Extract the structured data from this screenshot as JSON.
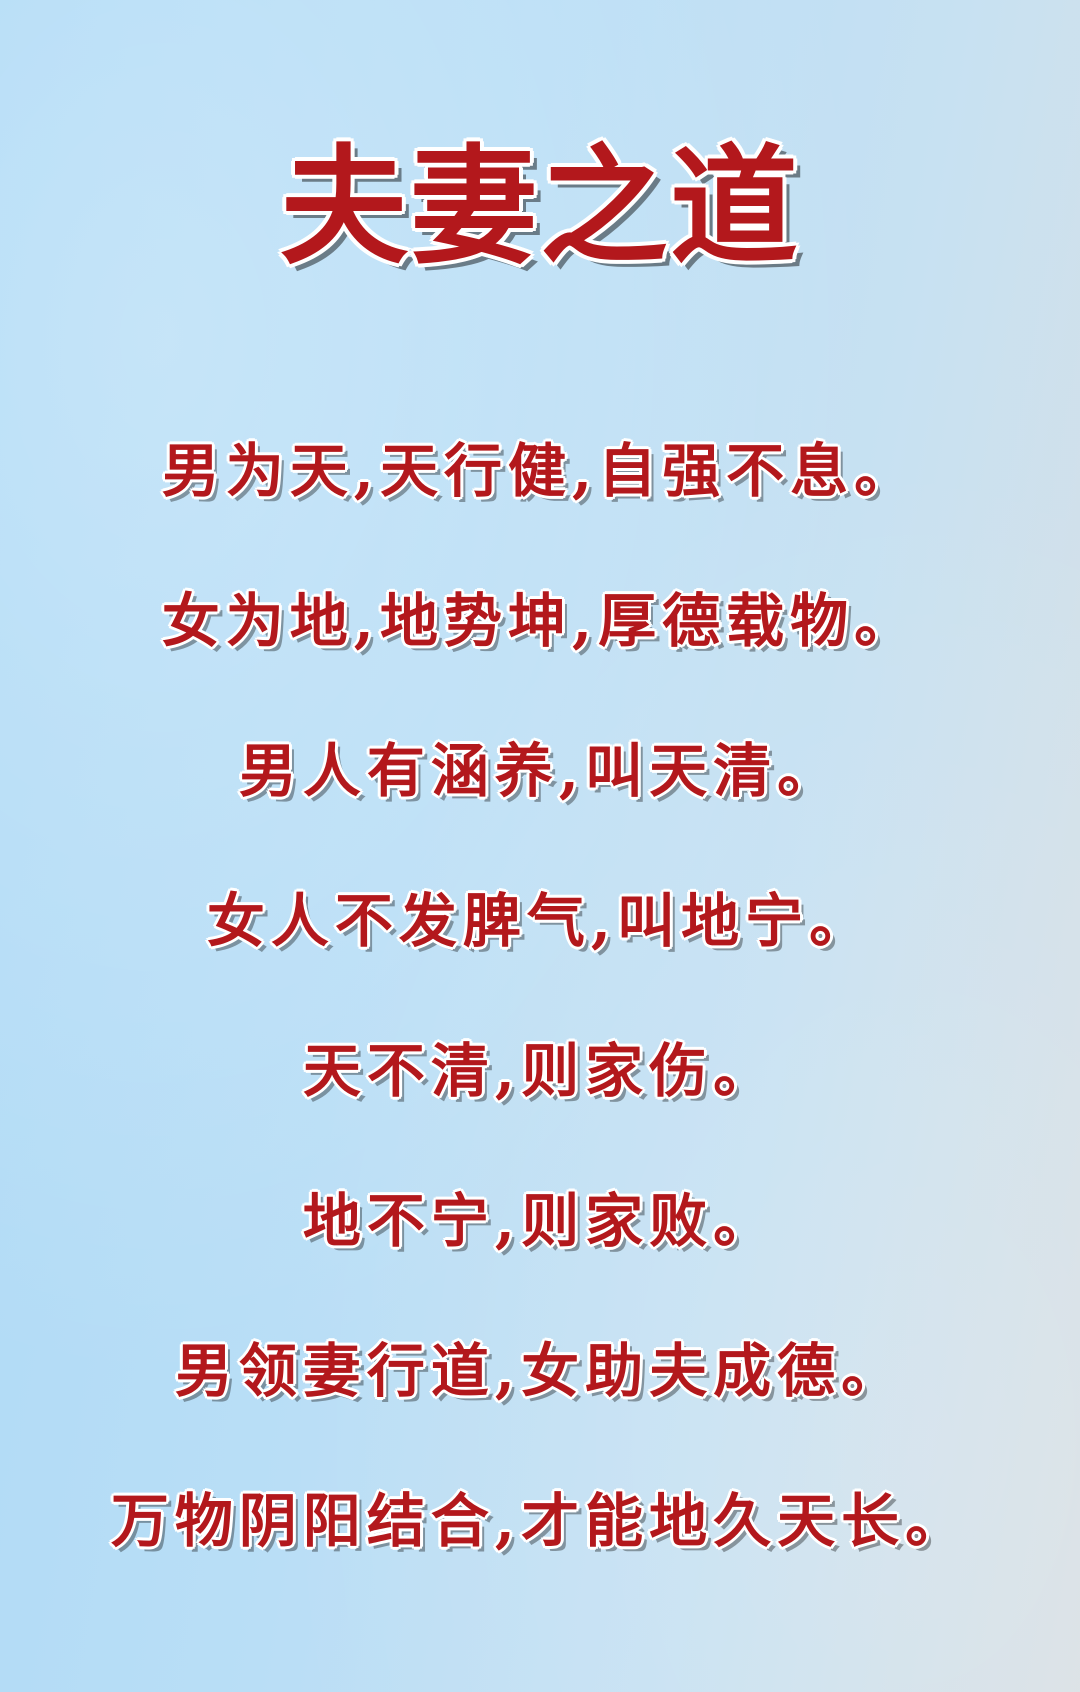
{
  "title": "夫妻之道",
  "lines": [
    "男为天,天行健,自强不息。",
    "女为地,地势坤,厚德载物。",
    "男人有涵养,叫天清。",
    "女人不发脾气,叫地宁。",
    "天不清,则家伤。",
    "地不宁,则家败。",
    "男领妻行道,女助夫成德。",
    "万物阴阳结合,才能地久天长。"
  ],
  "colors": {
    "text": "#b3181c",
    "outline": "#ffffff",
    "background_left": "#aedaf6",
    "background_right": "#d9e0e4"
  }
}
